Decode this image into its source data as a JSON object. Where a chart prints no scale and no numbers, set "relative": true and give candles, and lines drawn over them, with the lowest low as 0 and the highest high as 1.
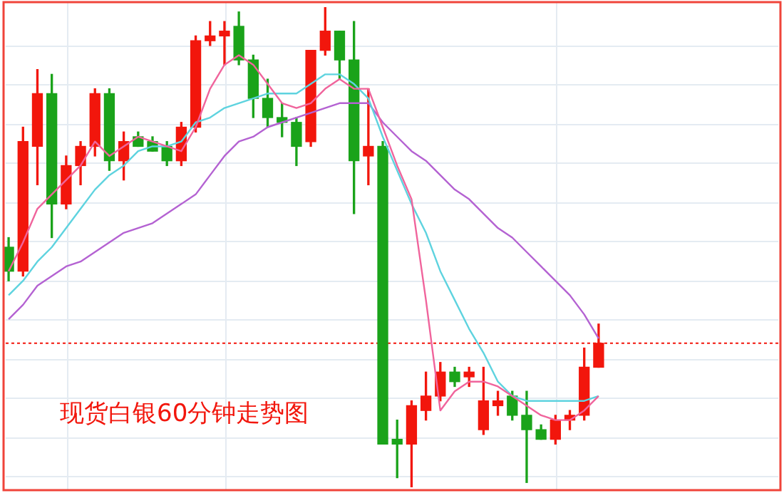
{
  "chart_data": {
    "type": "candlestick",
    "title": "现货白银60分钟走势图",
    "relative": true,
    "grid": true,
    "categories": [
      null,
      null,
      null,
      null,
      null,
      null,
      null,
      null,
      null,
      null,
      null,
      null,
      null,
      null,
      null,
      null,
      null,
      null,
      null,
      null,
      null,
      null,
      null,
      null,
      null,
      null,
      null,
      null,
      null,
      null,
      null,
      null,
      null,
      null,
      null,
      null,
      null,
      null,
      null,
      null,
      null,
      null
    ],
    "ohlc": [
      [
        0.5,
        0.52,
        0.43,
        0.45
      ],
      [
        0.45,
        0.75,
        0.44,
        0.72
      ],
      [
        0.71,
        0.87,
        0.63,
        0.82
      ],
      [
        0.82,
        0.86,
        0.52,
        0.59
      ],
      [
        0.59,
        0.69,
        0.58,
        0.67
      ],
      [
        0.67,
        0.72,
        0.63,
        0.71
      ],
      [
        0.71,
        0.83,
        0.69,
        0.82
      ],
      [
        0.82,
        0.83,
        0.66,
        0.68
      ],
      [
        0.68,
        0.74,
        0.64,
        0.72
      ],
      [
        0.73,
        0.74,
        0.71,
        0.71
      ],
      [
        0.72,
        0.73,
        0.7,
        0.7
      ],
      [
        0.71,
        0.72,
        0.67,
        0.68
      ],
      [
        0.68,
        0.76,
        0.67,
        0.75
      ],
      [
        0.75,
        0.94,
        0.74,
        0.93
      ],
      [
        0.93,
        0.97,
        0.92,
        0.94
      ],
      [
        0.94,
        0.97,
        0.88,
        0.95
      ],
      [
        0.96,
        0.99,
        0.88,
        0.89
      ],
      [
        0.89,
        0.9,
        0.77,
        0.81
      ],
      [
        0.81,
        0.85,
        0.75,
        0.77
      ],
      [
        0.77,
        0.8,
        0.73,
        0.76
      ],
      [
        0.76,
        0.77,
        0.67,
        0.71
      ],
      [
        0.72,
        0.91,
        0.71,
        0.91
      ],
      [
        0.91,
        1.0,
        0.9,
        0.95
      ],
      [
        0.95,
        0.95,
        0.85,
        0.89
      ],
      [
        0.89,
        0.97,
        0.57,
        0.68
      ],
      [
        0.69,
        0.83,
        0.63,
        0.71
      ],
      [
        0.71,
        0.72,
        0.09,
        0.09
      ],
      [
        0.1,
        0.14,
        0.02,
        0.09
      ],
      [
        0.09,
        0.18,
        0,
        0.17
      ],
      [
        0.16,
        0.24,
        0.14,
        0.19
      ],
      [
        0.19,
        0.26,
        0.18,
        0.24
      ],
      [
        0.24,
        0.25,
        0.21,
        0.22
      ],
      [
        0.23,
        0.25,
        0.21,
        0.24
      ],
      [
        0.12,
        0.25,
        0.11,
        0.18
      ],
      [
        0.17,
        0.2,
        0.15,
        0.18
      ],
      [
        0.19,
        0.2,
        0.14,
        0.15
      ],
      [
        0.15,
        0.2,
        0.01,
        0.12
      ],
      [
        0.12,
        0.13,
        0.1,
        0.1
      ],
      [
        0.1,
        0.15,
        0.09,
        0.14
      ],
      [
        0.14,
        0.16,
        0.12,
        0.15
      ],
      [
        0.15,
        0.29,
        0.14,
        0.25
      ],
      [
        0.25,
        0.34,
        0.25,
        0.3
      ]
    ],
    "colors": [
      "#1aa31a",
      "#f2160c",
      "#f2160c",
      "#1aa31a",
      "#f2160c",
      "#f2160c",
      "#f2160c",
      "#1aa31a",
      "#f2160c",
      "#1aa31a",
      "#1aa31a",
      "#1aa31a",
      "#f2160c",
      "#f2160c",
      "#f2160c",
      "#f2160c",
      "#1aa31a",
      "#1aa31a",
      "#1aa31a",
      "#1aa31a",
      "#1aa31a",
      "#f2160c",
      "#f2160c",
      "#1aa31a",
      "#1aa31a",
      "#f2160c",
      "#1aa31a",
      "#1aa31a",
      "#f2160c",
      "#f2160c",
      "#f2160c",
      "#1aa31a",
      "#f2160c",
      "#f2160c",
      "#f2160c",
      "#1aa31a",
      "#1aa31a",
      "#1aa31a",
      "#f2160c",
      "#f2160c",
      "#f2160c",
      "#f2160c"
    ],
    "series": [
      {
        "type": "line",
        "color": "#f0649c",
        "values": [
          0.45,
          0.51,
          0.58,
          0.61,
          0.64,
          0.67,
          0.72,
          0.69,
          0.71,
          0.73,
          0.72,
          0.71,
          0.7,
          0.75,
          0.83,
          0.88,
          0.9,
          0.88,
          0.84,
          0.8,
          0.79,
          0.8,
          0.83,
          0.85,
          0.83,
          0.83,
          0.75,
          0.67,
          0.6,
          0.39,
          0.16,
          0.2,
          0.22,
          0.22,
          0.21,
          0.19,
          0.17,
          0.15,
          0.14,
          0.14,
          0.16,
          0.19
        ]
      },
      {
        "type": "line",
        "color": "#5ed3df",
        "values": [
          0.4,
          0.43,
          0.47,
          0.5,
          0.54,
          0.58,
          0.62,
          0.65,
          0.67,
          0.7,
          0.71,
          0.71,
          0.72,
          0.76,
          0.77,
          0.79,
          0.8,
          0.81,
          0.82,
          0.82,
          0.82,
          0.84,
          0.86,
          0.86,
          0.84,
          0.81,
          0.73,
          0.66,
          0.59,
          0.53,
          0.45,
          0.39,
          0.33,
          0.28,
          0.22,
          0.19,
          0.18,
          0.18,
          0.18,
          0.18,
          0.18,
          0.19
        ]
      },
      {
        "type": "line",
        "color": "#b462d2",
        "values": [
          0.35,
          0.38,
          0.42,
          0.44,
          0.46,
          0.47,
          0.49,
          0.51,
          0.53,
          0.54,
          0.55,
          0.57,
          0.59,
          0.61,
          0.65,
          0.69,
          0.72,
          0.73,
          0.75,
          0.76,
          0.77,
          0.78,
          0.79,
          0.8,
          0.8,
          0.8,
          0.76,
          0.73,
          0.7,
          0.68,
          0.65,
          0.62,
          0.6,
          0.57,
          0.54,
          0.52,
          0.49,
          0.46,
          0.43,
          0.4,
          0.36,
          0.31
        ]
      }
    ],
    "ref_lines": [
      {
        "axis": "y",
        "value": 0.3,
        "color": "#f2160c",
        "line_style": "dotted"
      }
    ]
  }
}
